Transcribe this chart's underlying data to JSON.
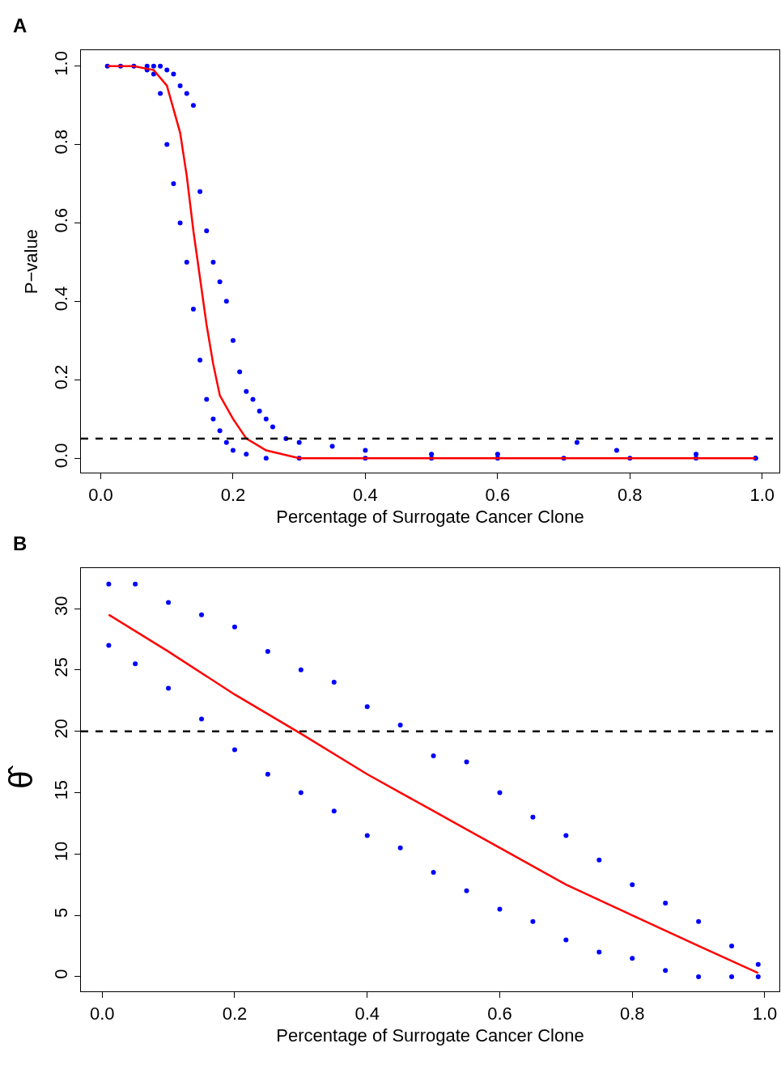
{
  "chart_data": [
    {
      "type": "scatter",
      "title": "A",
      "xlabel": "Percentage of Surrogate Cancer Clone",
      "ylabel": "P−value",
      "xlim": [
        -0.03,
        1.026
      ],
      "ylim": [
        -0.037,
        1.04
      ],
      "xticks": [
        {
          "value": 0,
          "label": "0.0"
        },
        {
          "value": 0.2,
          "label": "0.2"
        },
        {
          "value": 0.4,
          "label": "0.4"
        },
        {
          "value": 0.6,
          "label": "0.6"
        },
        {
          "value": 0.8,
          "label": "0.8"
        },
        {
          "value": 1,
          "label": "1.0"
        }
      ],
      "yticks": [
        {
          "value": 0,
          "label": "0.0"
        },
        {
          "value": 0.2,
          "label": "0.2"
        },
        {
          "value": 0.4,
          "label": "0.4"
        },
        {
          "value": 0.6,
          "label": "0.6"
        },
        {
          "value": 0.8,
          "label": "0.8"
        },
        {
          "value": 1,
          "label": "1.0"
        }
      ],
      "ref_lines": [
        {
          "axis": "y",
          "value": 0.05,
          "color": "#000000",
          "line_style": "dashed"
        }
      ],
      "series": [
        {
          "marker": "circle",
          "color": "#0000ff",
          "x": [
            0.01,
            0.03,
            0.05,
            0.07,
            0.08,
            0.09,
            0.1,
            0.11,
            0.12,
            0.13,
            0.14,
            0.15,
            0.16,
            0.17,
            0.18,
            0.19,
            0.2,
            0.21,
            0.22,
            0.23,
            0.24,
            0.25,
            0.26,
            0.28,
            0.3,
            0.35,
            0.4,
            0.5,
            0.6,
            0.72,
            0.78,
            0.9,
            0.99,
            0.07,
            0.08,
            0.09,
            0.1,
            0.11,
            0.12,
            0.13,
            0.14,
            0.15,
            0.16,
            0.17,
            0.18,
            0.19,
            0.2,
            0.22,
            0.25,
            0.3,
            0.4,
            0.5,
            0.6,
            0.7,
            0.8,
            0.9,
            0.99
          ],
          "values": [
            1.0,
            1.0,
            1.0,
            1.0,
            1.0,
            1.0,
            0.99,
            0.98,
            0.95,
            0.93,
            0.9,
            0.68,
            0.58,
            0.5,
            0.45,
            0.4,
            0.3,
            0.22,
            0.17,
            0.15,
            0.12,
            0.1,
            0.08,
            0.05,
            0.04,
            0.03,
            0.02,
            0.01,
            0.01,
            0.04,
            0.02,
            0.01,
            0.0,
            0.99,
            0.98,
            0.93,
            0.8,
            0.7,
            0.6,
            0.5,
            0.38,
            0.25,
            0.15,
            0.1,
            0.07,
            0.04,
            0.02,
            0.01,
            0.0,
            0.0,
            0.0,
            0.0,
            0.0,
            0.0,
            0.0,
            0.0,
            0.0
          ]
        },
        {
          "type": "line",
          "color": "#ff0000",
          "x": [
            0.01,
            0.05,
            0.08,
            0.1,
            0.12,
            0.13,
            0.14,
            0.15,
            0.16,
            0.17,
            0.18,
            0.2,
            0.22,
            0.25,
            0.3,
            0.4,
            0.6,
            0.8,
            0.99
          ],
          "values": [
            1.0,
            1.0,
            0.99,
            0.95,
            0.83,
            0.72,
            0.58,
            0.46,
            0.34,
            0.24,
            0.16,
            0.1,
            0.05,
            0.02,
            0.0,
            0.0,
            0.0,
            0.0,
            0.0
          ]
        }
      ]
    },
    {
      "type": "scatter",
      "title": "B",
      "xlabel": "Percentage of Surrogate Cancer Clone",
      "ylabel": "θ̂",
      "xlim": [
        -0.032,
        1.022
      ],
      "ylim": [
        -1.2,
        33.3
      ],
      "xticks": [
        {
          "value": 0,
          "label": "0.0"
        },
        {
          "value": 0.2,
          "label": "0.2"
        },
        {
          "value": 0.4,
          "label": "0.4"
        },
        {
          "value": 0.6,
          "label": "0.6"
        },
        {
          "value": 0.8,
          "label": "0.8"
        },
        {
          "value": 1,
          "label": "1.0"
        }
      ],
      "yticks": [
        0,
        5,
        10,
        15,
        20,
        25,
        30
      ],
      "ref_lines": [
        {
          "axis": "y",
          "value": 20,
          "color": "#000000",
          "line_style": "dashed"
        }
      ],
      "series": [
        {
          "marker": "circle",
          "color": "#0000ff",
          "x": [
            0.01,
            0.05,
            0.1,
            0.15,
            0.2,
            0.25,
            0.3,
            0.35,
            0.4,
            0.45,
            0.5,
            0.55,
            0.6,
            0.65,
            0.7,
            0.75,
            0.8,
            0.85,
            0.9,
            0.95,
            0.99,
            0.01,
            0.05,
            0.1,
            0.15,
            0.2,
            0.25,
            0.3,
            0.35,
            0.4,
            0.45,
            0.5,
            0.55,
            0.6,
            0.65,
            0.7,
            0.75,
            0.8,
            0.85,
            0.9,
            0.95,
            0.99
          ],
          "values": [
            32,
            32,
            30.5,
            29.5,
            28.5,
            26.5,
            25,
            24,
            22,
            20.5,
            18,
            17.5,
            15,
            13,
            11.5,
            9.5,
            7.5,
            6,
            4.5,
            2.5,
            1,
            27,
            25.5,
            23.5,
            21,
            18.5,
            16.5,
            15,
            13.5,
            11.5,
            10.5,
            8.5,
            7,
            5.5,
            4.5,
            3,
            2,
            1.5,
            0.5,
            0,
            0,
            0
          ]
        },
        {
          "type": "line",
          "color": "#ff0000",
          "x": [
            0.01,
            0.1,
            0.2,
            0.3,
            0.4,
            0.5,
            0.6,
            0.7,
            0.8,
            0.9,
            0.99
          ],
          "values": [
            29.5,
            26.5,
            23,
            19.8,
            16.5,
            13.5,
            10.5,
            7.5,
            5,
            2.5,
            0.3
          ]
        }
      ]
    }
  ]
}
